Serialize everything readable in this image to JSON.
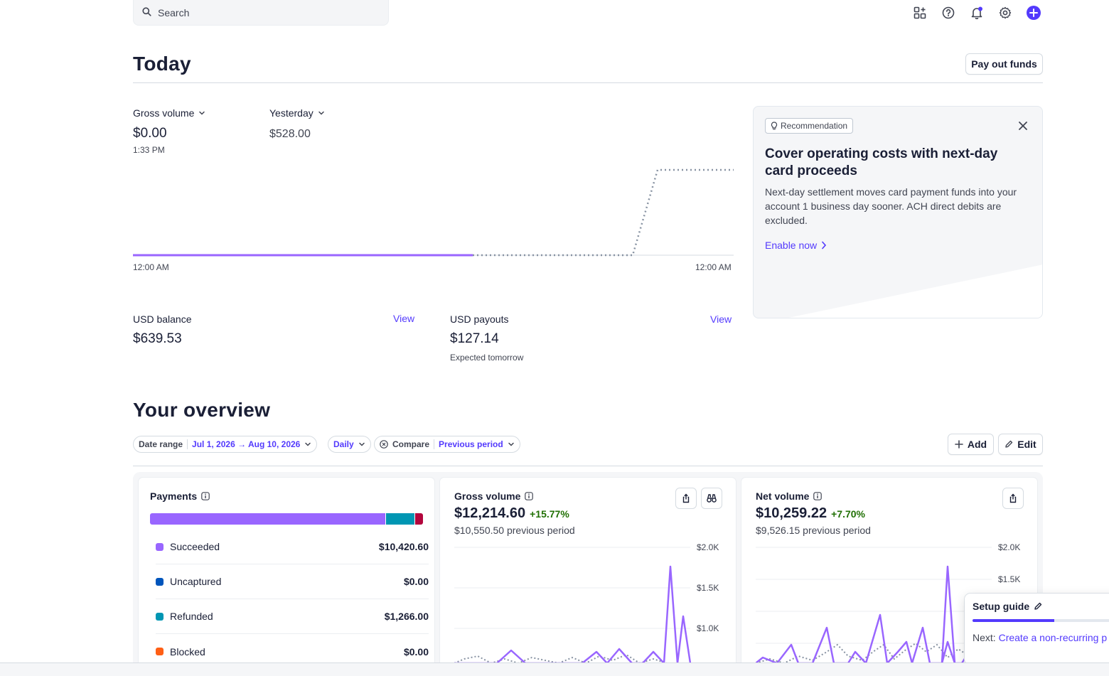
{
  "search": {
    "placeholder": "Search"
  },
  "today": {
    "title": "Today",
    "payout_button": "Pay out funds",
    "gross_label": "Gross volume",
    "gross_value": "$0.00",
    "gross_time": "1:33 PM",
    "compare_label": "Yesterday",
    "compare_value": "$528.00",
    "x_start": "12:00 AM",
    "x_end": "12:00 AM",
    "balance": {
      "label": "USD balance",
      "value": "$639.53",
      "link": "View"
    },
    "payouts": {
      "label": "USD payouts",
      "value": "$127.14",
      "sub": "Expected tomorrow",
      "link": "View"
    }
  },
  "recommendation": {
    "badge": "Recommendation",
    "title": "Cover operating costs with next-day card proceeds",
    "body": "Next-day settlement moves card payment funds into your account 1 business day sooner. ACH direct debits are excluded.",
    "link": "Enable now"
  },
  "overview": {
    "title": "Your overview",
    "date_range_label": "Date range",
    "date_range_value": "Jul 1, 2026 → Aug 10, 2026",
    "interval": "Daily",
    "compare_label": "Compare",
    "compare_value": "Previous period",
    "add_button": "Add",
    "edit_button": "Edit"
  },
  "payments_card": {
    "title": "Payments",
    "items": [
      {
        "label": "Succeeded",
        "amount": "$10,420.60",
        "color": "#9966ff"
      },
      {
        "label": "Uncaptured",
        "amount": "$0.00",
        "color": "#0055bc"
      },
      {
        "label": "Refunded",
        "amount": "$1,266.00",
        "color": "#0096b3"
      },
      {
        "label": "Blocked",
        "amount": "$0.00",
        "color": "#ff5f15"
      }
    ],
    "bar_fractions": {
      "succeeded": 0.875,
      "refunded": 0.106,
      "disputed": 0.029
    },
    "bar_colors": {
      "succeeded": "#9966ff",
      "refunded": "#0096b3",
      "disputed": "#b3063d"
    }
  },
  "gross_card": {
    "title": "Gross volume",
    "value": "$12,214.60",
    "change": "+15.77%",
    "previous": "$10,550.50 previous period",
    "ticks": [
      "$2.0K",
      "$1.5K",
      "$1.0K"
    ]
  },
  "net_card": {
    "title": "Net volume",
    "value": "$10,259.22",
    "change": "+7.70%",
    "previous": "$9,526.15 previous period",
    "ticks": [
      "$2.0K",
      "$1.5K"
    ]
  },
  "setup_guide": {
    "title": "Setup guide",
    "next_label": "Next:",
    "next_link": "Create a non-recurring p",
    "progress": 0.55
  },
  "colors": {
    "accent": "#533afd",
    "series": "#9966ff",
    "positive": "#217005"
  }
}
